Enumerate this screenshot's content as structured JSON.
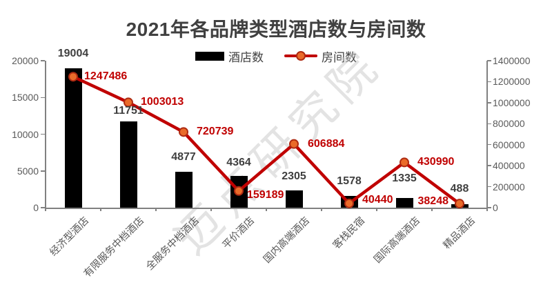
{
  "title": "2021年各品牌类型酒店数与房间数",
  "watermark": "迈点研究院",
  "legend": {
    "bar_label": "酒店数",
    "line_label": "房间数"
  },
  "colors": {
    "bar": "#000000",
    "line": "#C00000",
    "marker_fill": "#EA6B2A",
    "marker_stroke": "#AE2B12",
    "line_value_label": "#C00000",
    "bar_value_label": "#3F3F3F",
    "axis_line": "#808080",
    "tick_label": "#595959",
    "title": "#404040",
    "watermark": "#C9C9C9"
  },
  "chart_data": {
    "type": "bar",
    "subtype": "bar+line combo, dual axis",
    "title": "2021年各品牌类型酒店数与房间数",
    "categories": [
      "经济型酒店",
      "有限服务中档酒店",
      "全服务中档酒店",
      "平价酒店",
      "国内高端酒店",
      "客栈民宿",
      "国际高端酒店",
      "精品酒店"
    ],
    "series": [
      {
        "name": "酒店数",
        "type": "bar",
        "axis": "left",
        "color": "#000000",
        "values": [
          19004,
          11751,
          4877,
          4364,
          2305,
          1578,
          1335,
          488
        ]
      },
      {
        "name": "房间数",
        "type": "line",
        "axis": "right",
        "color": "#C00000",
        "values": [
          1247486,
          1003013,
          720739,
          159189,
          606884,
          40440,
          430990,
          38248
        ]
      }
    ],
    "left_axis": {
      "min": 0,
      "max": 20000,
      "ticks": [
        0,
        5000,
        10000,
        15000,
        20000
      ]
    },
    "right_axis": {
      "min": 0,
      "max": 1400000,
      "ticks": [
        0,
        200000,
        400000,
        600000,
        800000,
        1000000,
        1200000,
        1400000
      ]
    },
    "grid": false,
    "legend_position": "top",
    "data_labels": true
  }
}
